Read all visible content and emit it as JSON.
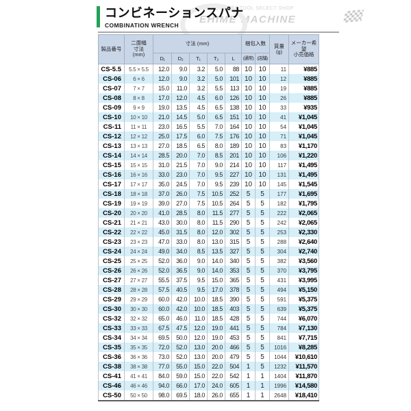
{
  "header": {
    "title_ja": "コンビネーションスパナ",
    "title_en": "COMBINATION WRENCH",
    "watermark": {
      "tagline": "HIGH QUALITY TOOL SELECT SHOP",
      "brand": "EHIME MACHINE"
    }
  },
  "colors": {
    "accent_green": "#24a159",
    "header_bg": "#c9d6e8",
    "row_alt_bg": "#d6eff9"
  },
  "table": {
    "columns": {
      "product": "製品番号",
      "width_across_flats": "二面幅\n寸法\n(mm)",
      "dimensions_group": "寸法 (mm)",
      "dimension_subcols": [
        "D₁",
        "D₂",
        "T₁",
        "T₂",
        "L"
      ],
      "packing_group": "梱包入数",
      "packing_subcols": [
        "(通常)",
        "(店舗)"
      ],
      "mass": "質量\n(g)",
      "price": "メーカー希望\n小売価格"
    },
    "rows": [
      [
        "CS-5.5",
        "5.5 × 5.5",
        "12.0",
        "9.0",
        "3.2",
        "5.0",
        "88",
        "10",
        "10",
        "11",
        "¥885"
      ],
      [
        "CS-06",
        "6 × 6",
        "12.0",
        "9.0",
        "3.2",
        "5.0",
        "101",
        "10",
        "10",
        "12",
        "¥885"
      ],
      [
        "CS-07",
        "7 × 7",
        "15.0",
        "11.0",
        "3.2",
        "5.5",
        "113",
        "10",
        "10",
        "19",
        "¥885"
      ],
      [
        "CS-08",
        "8 × 8",
        "17.0",
        "12.0",
        "4.5",
        "6.0",
        "126",
        "10",
        "10",
        "26",
        "¥885"
      ],
      [
        "CS-09",
        "9 × 9",
        "19.0",
        "13.5",
        "4.5",
        "6.5",
        "138",
        "10",
        "10",
        "33",
        "¥935"
      ],
      [
        "CS-10",
        "10 × 10",
        "21.0",
        "14.5",
        "5.0",
        "6.5",
        "151",
        "10",
        "10",
        "41",
        "¥1,045"
      ],
      [
        "CS-11",
        "11 × 11",
        "23.0",
        "16.5",
        "5.5",
        "7.0",
        "164",
        "10",
        "10",
        "54",
        "¥1,045"
      ],
      [
        "CS-12",
        "12 × 12",
        "25.0",
        "17.5",
        "6.0",
        "7.5",
        "176",
        "10",
        "10",
        "71",
        "¥1,045"
      ],
      [
        "CS-13",
        "13 × 13",
        "27.0",
        "18.5",
        "6.5",
        "8.0",
        "189",
        "10",
        "10",
        "83",
        "¥1,170"
      ],
      [
        "CS-14",
        "14 × 14",
        "28.5",
        "20.0",
        "7.0",
        "8.5",
        "201",
        "10",
        "10",
        "106",
        "¥1,220"
      ],
      [
        "CS-15",
        "15 × 15",
        "31.0",
        "21.5",
        "7.0",
        "9.0",
        "214",
        "10",
        "10",
        "117",
        "¥1,495"
      ],
      [
        "CS-16",
        "16 × 16",
        "33.0",
        "23.0",
        "7.0",
        "9.5",
        "227",
        "10",
        "10",
        "131",
        "¥1,495"
      ],
      [
        "CS-17",
        "17 × 17",
        "35.0",
        "24.5",
        "7.0",
        "9.5",
        "239",
        "10",
        "10",
        "145",
        "¥1,545"
      ],
      [
        "CS-18",
        "18 × 18",
        "37.0",
        "26.0",
        "7.5",
        "10.5",
        "252",
        "5",
        "5",
        "177",
        "¥1,695"
      ],
      [
        "CS-19",
        "19 × 19",
        "39.0",
        "27.0",
        "7.5",
        "10.5",
        "264",
        "5",
        "5",
        "182",
        "¥1,795"
      ],
      [
        "CS-20",
        "20 × 20",
        "41.0",
        "28.5",
        "8.0",
        "11.5",
        "277",
        "5",
        "5",
        "222",
        "¥2,065"
      ],
      [
        "CS-21",
        "21 × 21",
        "43.0",
        "30.0",
        "8.0",
        "11.5",
        "290",
        "5",
        "5",
        "242",
        "¥2,065"
      ],
      [
        "CS-22",
        "22 × 22",
        "45.0",
        "31.5",
        "8.0",
        "12.0",
        "302",
        "5",
        "5",
        "253",
        "¥2,330"
      ],
      [
        "CS-23",
        "23 × 23",
        "47.0",
        "33.0",
        "8.0",
        "13.0",
        "315",
        "5",
        "5",
        "288",
        "¥2,640"
      ],
      [
        "CS-24",
        "24 × 24",
        "49.0",
        "34.0",
        "8.5",
        "13.5",
        "327",
        "5",
        "5",
        "304",
        "¥2,740"
      ],
      [
        "CS-25",
        "25 × 25",
        "52.0",
        "36.0",
        "9.0",
        "14.0",
        "340",
        "5",
        "5",
        "382",
        "¥3,560"
      ],
      [
        "CS-26",
        "26 × 26",
        "52.0",
        "36.5",
        "9.0",
        "14.0",
        "353",
        "5",
        "5",
        "370",
        "¥3,795"
      ],
      [
        "CS-27",
        "27 × 27",
        "55.5",
        "37.5",
        "9.5",
        "15.0",
        "365",
        "5",
        "5",
        "431",
        "¥3,995"
      ],
      [
        "CS-28",
        "28 × 28",
        "57.5",
        "40.5",
        "9.5",
        "17.0",
        "378",
        "5",
        "5",
        "494",
        "¥5,150"
      ],
      [
        "CS-29",
        "29 × 29",
        "60.0",
        "42.0",
        "10.0",
        "18.5",
        "390",
        "5",
        "5",
        "591",
        "¥5,375"
      ],
      [
        "CS-30",
        "30 × 30",
        "60.0",
        "42.0",
        "10.0",
        "18.5",
        "403",
        "5",
        "5",
        "639",
        "¥5,375"
      ],
      [
        "CS-32",
        "32 × 32",
        "65.0",
        "46.0",
        "11.0",
        "18.5",
        "428",
        "5",
        "5",
        "744",
        "¥6,070"
      ],
      [
        "CS-33",
        "33 × 33",
        "67.5",
        "47.5",
        "12.0",
        "19.0",
        "441",
        "5",
        "5",
        "784",
        "¥7,130"
      ],
      [
        "CS-34",
        "34 × 34",
        "69.5",
        "50.0",
        "12.0",
        "19.0",
        "453",
        "5",
        "5",
        "841",
        "¥7,715"
      ],
      [
        "CS-35",
        "35 × 35",
        "72.0",
        "52.0",
        "13.0",
        "20.0",
        "466",
        "5",
        "5",
        "1016",
        "¥8,285"
      ],
      [
        "CS-36",
        "36 × 36",
        "73.0",
        "52.0",
        "13.0",
        "20.0",
        "479",
        "5",
        "5",
        "1044",
        "¥10,610"
      ],
      [
        "CS-38",
        "38 × 38",
        "77.0",
        "55.0",
        "15.0",
        "22.0",
        "504",
        "1",
        "5",
        "1232",
        "¥11,570"
      ],
      [
        "CS-41",
        "41 × 41",
        "84.0",
        "59.0",
        "15.0",
        "22.0",
        "542",
        "1",
        "1",
        "1404",
        "¥11,870"
      ],
      [
        "CS-46",
        "46 × 46",
        "94.0",
        "66.0",
        "17.0",
        "24.0",
        "605",
        "1",
        "1",
        "1996",
        "¥14,580"
      ],
      [
        "CS-50",
        "50 × 50",
        "98.0",
        "69.5",
        "18.0",
        "26.0",
        "655",
        "1",
        "1",
        "2648",
        "¥18,410"
      ]
    ]
  }
}
